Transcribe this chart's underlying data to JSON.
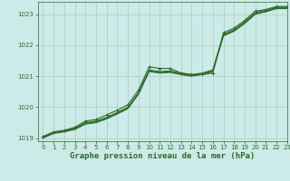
{
  "background_color": "#cceae7",
  "grid_color": "#aaccbb",
  "line_color": "#2d6a2d",
  "title": "Graphe pression niveau de la mer (hPa)",
  "xlim": [
    -0.5,
    23
  ],
  "ylim": [
    1018.9,
    1023.4
  ],
  "xticks": [
    0,
    1,
    2,
    3,
    4,
    5,
    6,
    7,
    8,
    9,
    10,
    11,
    12,
    13,
    14,
    15,
    16,
    17,
    18,
    19,
    20,
    21,
    22,
    23
  ],
  "yticks": [
    1019,
    1020,
    1021,
    1022,
    1023
  ],
  "lines": [
    {
      "x": [
        0,
        1,
        2,
        3,
        4,
        5,
        6,
        7,
        8,
        9,
        10,
        11,
        12,
        13,
        14,
        15,
        16,
        17,
        18,
        19,
        20,
        21,
        22,
        23
      ],
      "y": [
        1019.05,
        1019.2,
        1019.25,
        1019.35,
        1019.55,
        1019.6,
        1019.75,
        1019.9,
        1020.08,
        1020.55,
        1021.3,
        1021.25,
        1021.25,
        1021.1,
        1021.05,
        1021.05,
        1021.1,
        1022.4,
        1022.55,
        1022.8,
        1023.1,
        1023.15,
        1023.25,
        1023.25
      ],
      "marker": true
    },
    {
      "x": [
        0,
        1,
        2,
        3,
        4,
        5,
        6,
        7,
        8,
        9,
        10,
        11,
        12,
        13,
        14,
        15,
        16,
        17,
        18,
        19,
        20,
        21,
        22,
        23
      ],
      "y": [
        1019.0,
        1019.15,
        1019.2,
        1019.28,
        1019.45,
        1019.5,
        1019.62,
        1019.78,
        1019.95,
        1020.42,
        1021.15,
        1021.1,
        1021.12,
        1021.05,
        1021.0,
        1021.05,
        1021.15,
        1022.3,
        1022.45,
        1022.7,
        1023.0,
        1023.08,
        1023.18,
        1023.18
      ],
      "marker": false
    },
    {
      "x": [
        0,
        1,
        2,
        3,
        4,
        5,
        6,
        7,
        8,
        9,
        10,
        11,
        12,
        13,
        14,
        15,
        16,
        17,
        18,
        19,
        20,
        21,
        22,
        23
      ],
      "y": [
        1019.02,
        1019.17,
        1019.22,
        1019.3,
        1019.47,
        1019.52,
        1019.64,
        1019.8,
        1019.97,
        1020.44,
        1021.17,
        1021.12,
        1021.14,
        1021.07,
        1021.02,
        1021.07,
        1021.17,
        1022.32,
        1022.47,
        1022.72,
        1023.02,
        1023.1,
        1023.2,
        1023.2
      ],
      "marker": false
    },
    {
      "x": [
        0,
        1,
        2,
        3,
        4,
        5,
        6,
        7,
        8,
        9,
        10,
        11,
        12,
        13,
        14,
        15,
        16,
        17,
        18,
        19,
        20,
        21,
        22,
        23
      ],
      "y": [
        1019.04,
        1019.19,
        1019.24,
        1019.32,
        1019.5,
        1019.55,
        1019.67,
        1019.83,
        1020.0,
        1020.47,
        1021.2,
        1021.15,
        1021.17,
        1021.1,
        1021.05,
        1021.1,
        1021.2,
        1022.35,
        1022.5,
        1022.75,
        1023.05,
        1023.12,
        1023.22,
        1023.22
      ],
      "marker": false
    }
  ],
  "title_fontsize": 6.5,
  "tick_fontsize": 5.0,
  "linewidth": 0.8,
  "marker_size": 2.5,
  "marker_linewidth": 0.7
}
